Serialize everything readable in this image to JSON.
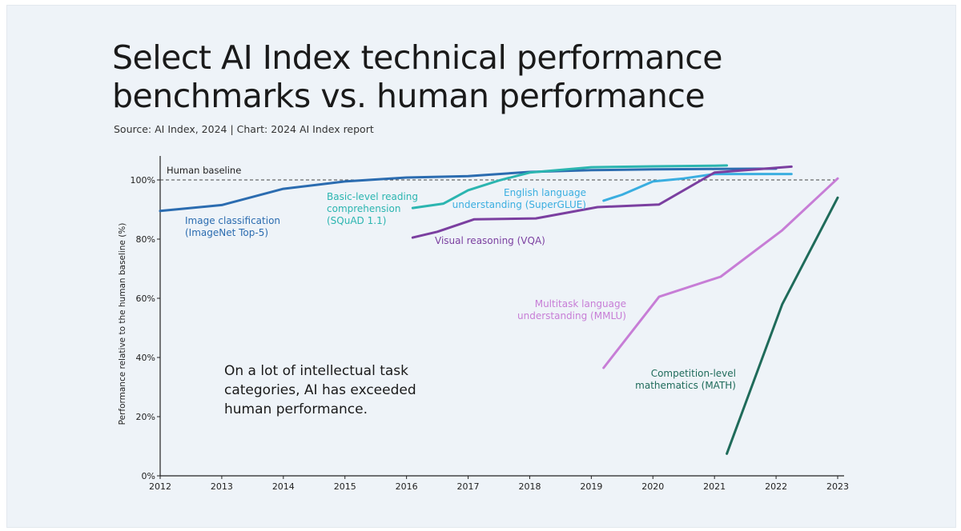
{
  "title_lines": [
    "Select AI Index technical performance",
    "benchmarks vs. human performance"
  ],
  "source": "Source: AI Index, 2024 | Chart: 2024 AI Index report",
  "annotation_lines": [
    "On a lot of intellectual task",
    "categories, AI has exceeded",
    "human performance."
  ],
  "chart_data": {
    "type": "line",
    "ylabel": "Performance relative to the human baseline (%)",
    "xlim": [
      2012,
      2023
    ],
    "ylim": [
      0,
      100
    ],
    "x_ticks": [
      "2012",
      "2013",
      "2014",
      "2015",
      "2016",
      "2017",
      "2018",
      "2019",
      "2020",
      "2021",
      "2022",
      "2023"
    ],
    "y_ticks": [
      {
        "value": 0,
        "label": "0%"
      },
      {
        "value": 20,
        "label": "20%"
      },
      {
        "value": 40,
        "label": "40%"
      },
      {
        "value": 60,
        "label": "60%"
      },
      {
        "value": 80,
        "label": "80%"
      },
      {
        "value": 100,
        "label": "100%"
      }
    ],
    "baseline": {
      "value": 100,
      "label": "Human baseline"
    },
    "series": [
      {
        "name": "Image classification (ImageNet Top-5)",
        "label_lines": [
          "Image classification",
          "(ImageNet Top-5)"
        ],
        "color": "#2b6cb0",
        "points": [
          [
            2012,
            89.5
          ],
          [
            2013,
            91.5
          ],
          [
            2014,
            97
          ],
          [
            2015,
            99.5
          ],
          [
            2016,
            100.8
          ],
          [
            2017,
            101.3
          ],
          [
            2018,
            102.7
          ],
          [
            2019,
            103.3
          ],
          [
            2020,
            103.6
          ],
          [
            2021,
            103.7
          ],
          [
            2022,
            103.8
          ]
        ]
      },
      {
        "name": "Basic-level reading comprehension (SQuAD 1.1)",
        "label_lines": [
          "Basic-level reading",
          "comprehension",
          "(SQuAD 1.1)"
        ],
        "color": "#2bb5b0",
        "points": [
          [
            2016.1,
            90.5
          ],
          [
            2016.6,
            92
          ],
          [
            2017,
            96.5
          ],
          [
            2017.5,
            99.8
          ],
          [
            2018,
            102.5
          ],
          [
            2019,
            104.3
          ],
          [
            2020,
            104.6
          ],
          [
            2021,
            104.8
          ],
          [
            2021.2,
            104.9
          ]
        ]
      },
      {
        "name": "English language understanding (SuperGLUE)",
        "label_lines": [
          "English language",
          "understanding (SuperGLUE)"
        ],
        "color": "#3aaee0",
        "points": [
          [
            2019.2,
            93
          ],
          [
            2019.5,
            95
          ],
          [
            2020,
            99.5
          ],
          [
            2020.5,
            100.5
          ],
          [
            2021,
            102
          ],
          [
            2022,
            102
          ],
          [
            2022.25,
            102
          ]
        ]
      },
      {
        "name": "Visual reasoning (VQA)",
        "label_lines": [
          "Visual reasoning (VQA)"
        ],
        "color": "#7b3fa0",
        "points": [
          [
            2016.1,
            80.5
          ],
          [
            2016.5,
            82.5
          ],
          [
            2017.1,
            86.7
          ],
          [
            2018.1,
            87
          ],
          [
            2019.1,
            90.8
          ],
          [
            2020.1,
            91.7
          ],
          [
            2021,
            102.5
          ],
          [
            2022.25,
            104.5
          ]
        ]
      },
      {
        "name": "Multitask language understanding (MMLU)",
        "label_lines": [
          "Multitask language",
          "understanding (MMLU)"
        ],
        "color": "#c77dd6",
        "points": [
          [
            2019.2,
            36.5
          ],
          [
            2020.1,
            60.5
          ],
          [
            2021.1,
            67.3
          ],
          [
            2022.1,
            83
          ],
          [
            2023,
            100.5
          ]
        ]
      },
      {
        "name": "Competition-level mathematics (MATH)",
        "label_lines": [
          "Competition-level",
          "mathematics (MATH)"
        ],
        "color": "#1f6b5a",
        "points": [
          [
            2021.2,
            7.5
          ],
          [
            2022.1,
            58
          ],
          [
            2023,
            94
          ]
        ]
      }
    ]
  }
}
